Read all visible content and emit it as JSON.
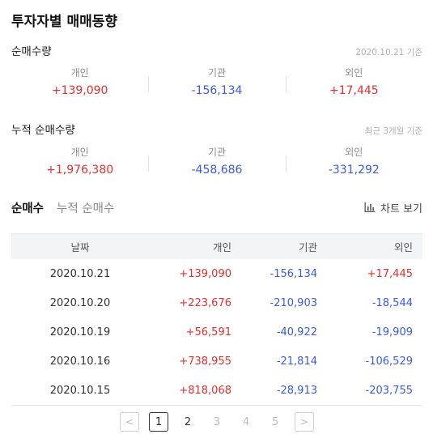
{
  "title": "투자자별 매매동향",
  "net": {
    "title": "순매수량",
    "note": "2020.10.21 기준",
    "cols": [
      {
        "label": "개인",
        "value": "+139,090"
      },
      {
        "label": "기관",
        "value": "-156,134"
      },
      {
        "label": "외인",
        "value": "+17,445"
      }
    ]
  },
  "cumulative": {
    "title": "누적 순매수량",
    "note": "최근 3개월 기준",
    "cols": [
      {
        "label": "개인",
        "value": "+1,976,380"
      },
      {
        "label": "기관",
        "value": "-458,686"
      },
      {
        "label": "외인",
        "value": "-331,292"
      }
    ]
  },
  "tabs": {
    "net": "순매수",
    "cumulative": "누적 순매수",
    "chart_view": "차트 보기"
  },
  "table": {
    "headers": [
      "날짜",
      "개인",
      "기관",
      "외인"
    ],
    "rows": [
      [
        "2020.10.21",
        "+139,090",
        "-156,134",
        "+17,445"
      ],
      [
        "2020.10.20",
        "+223,676",
        "-210,903",
        "-18,544"
      ],
      [
        "2020.10.19",
        "+56,591",
        "-40,922",
        "-19,909"
      ],
      [
        "2020.10.16",
        "+738,955",
        "-21,814",
        "-106,529"
      ],
      [
        "2020.10.15",
        "+818,068",
        "-28,913",
        "-203,755"
      ]
    ]
  },
  "pagination": {
    "prev": "<",
    "next": ">",
    "pages": [
      "1",
      "2",
      "3",
      "4",
      "5"
    ],
    "current": "1"
  },
  "colors": {
    "positive": "#e0302f",
    "negative": "#3b5bdb"
  },
  "icons": {
    "chart": "bar-chart-icon"
  }
}
